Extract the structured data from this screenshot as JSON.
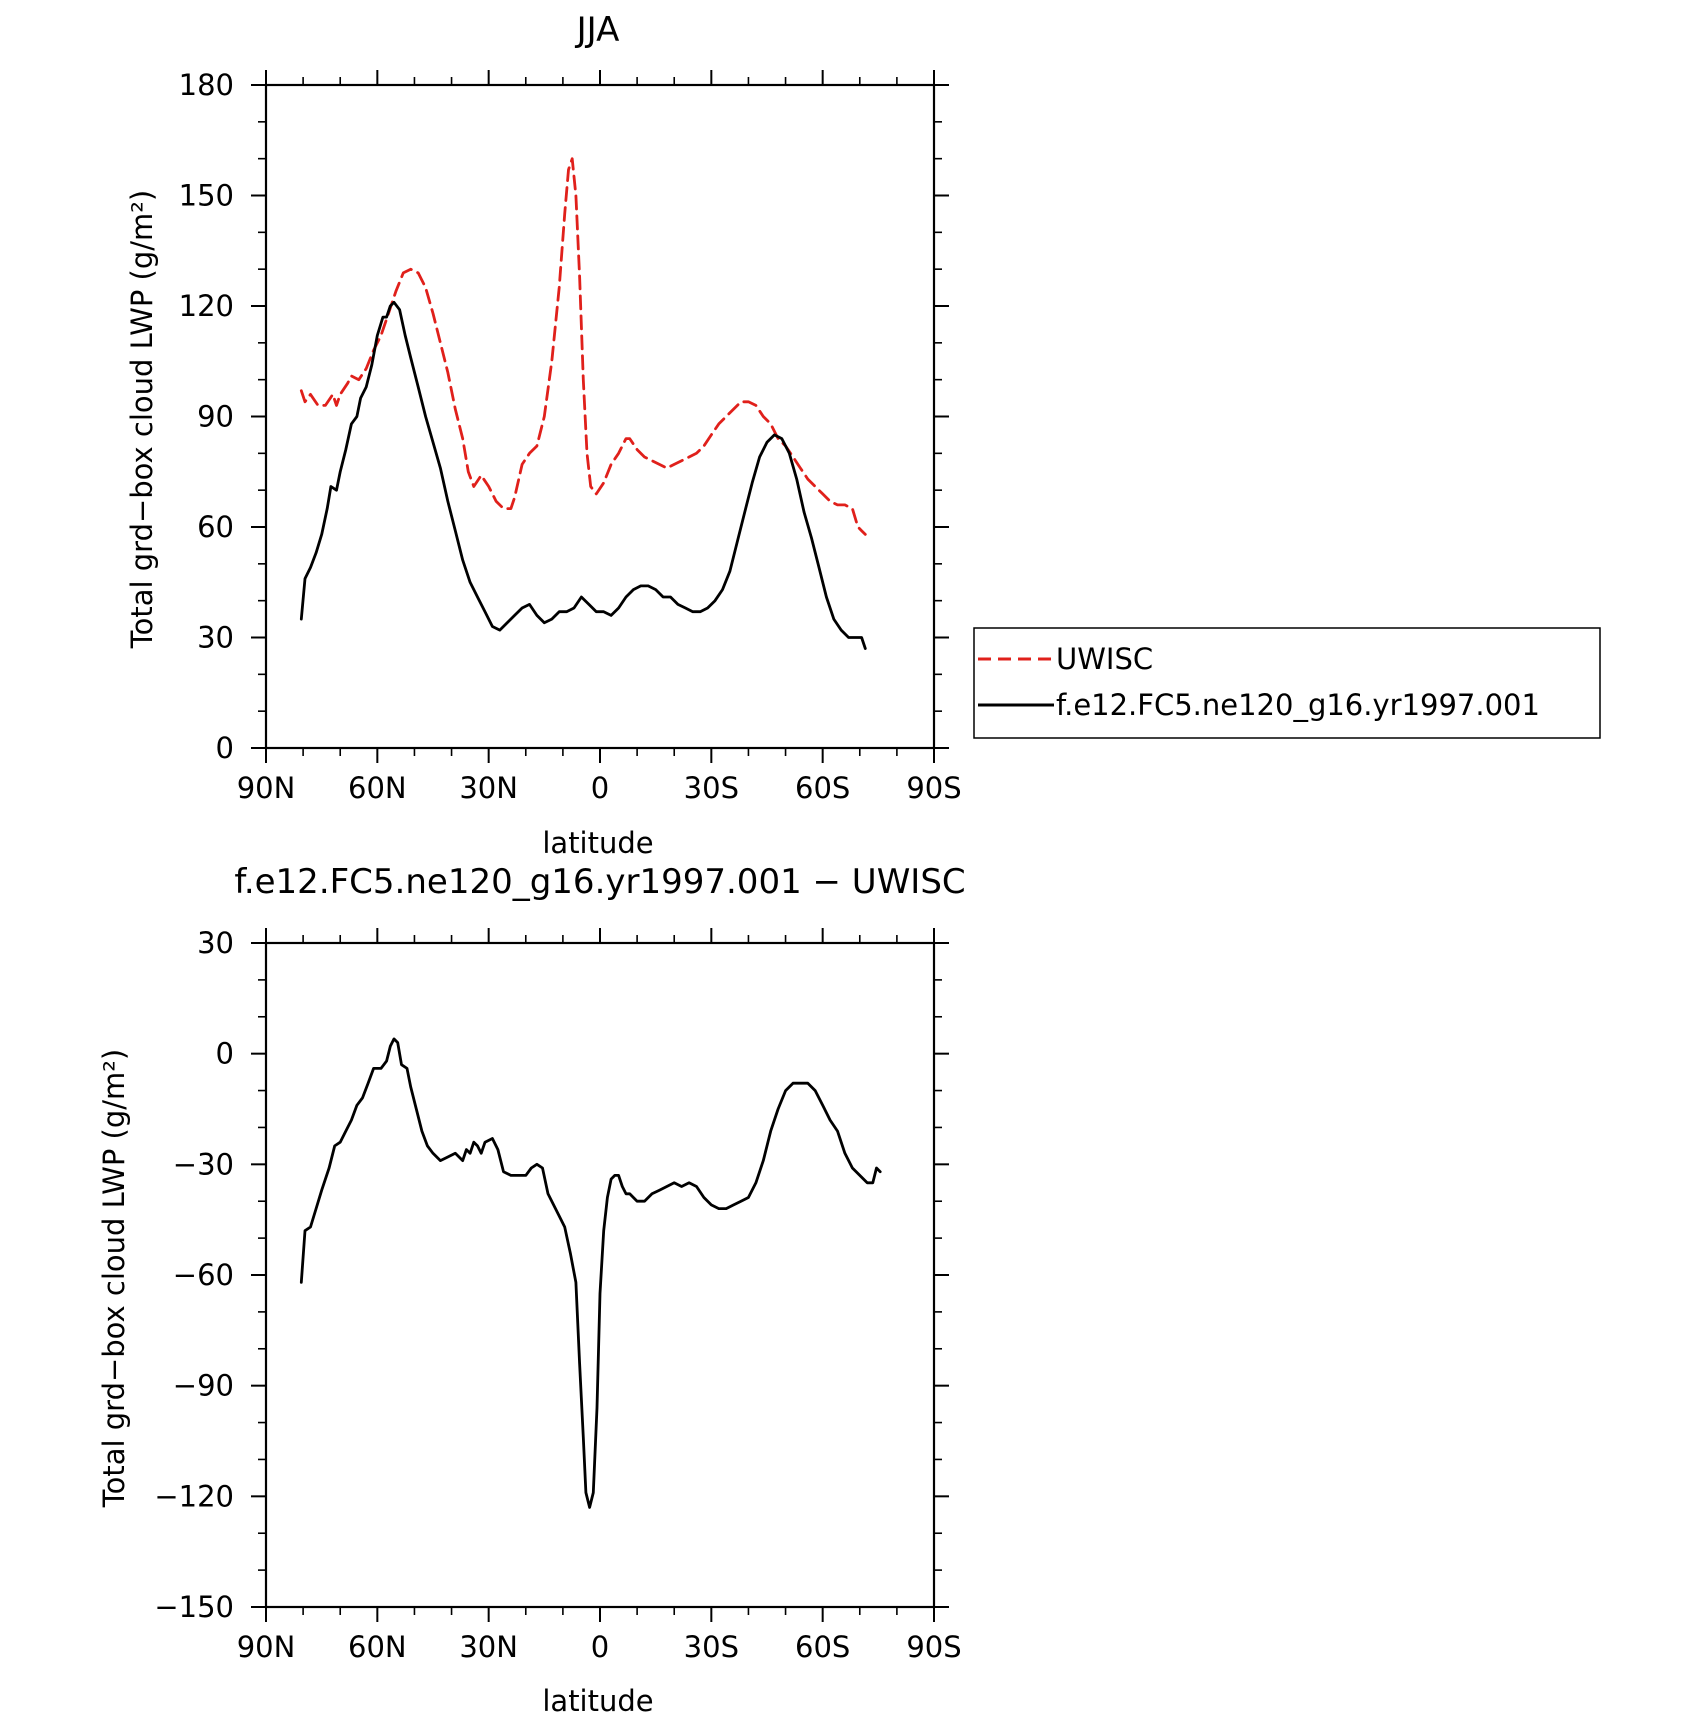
{
  "chart_data": [
    {
      "type": "line",
      "title": "JJA",
      "xlabel": "latitude",
      "ylabel": "Total grd−box cloud LWP (g/m²)",
      "xlim": [
        90,
        -90
      ],
      "ylim": [
        0,
        180
      ],
      "xticks": [
        90,
        60,
        30,
        0,
        -30,
        -60,
        -90
      ],
      "xtick_labels": [
        "90N",
        "60N",
        "30N",
        "0",
        "30S",
        "60S",
        "90S"
      ],
      "yticks": [
        0,
        30,
        60,
        90,
        120,
        150,
        180
      ],
      "ytick_labels": [
        "0",
        "30",
        "60",
        "90",
        "120",
        "150",
        "180"
      ],
      "legend": "right",
      "series": [
        {
          "name": "UWISC",
          "color": "#e0201b",
          "dash": "dashed",
          "points": [
            [
              80.5,
              97
            ],
            [
              79.5,
              94
            ],
            [
              78,
              96
            ],
            [
              76,
              93
            ],
            [
              74,
              93
            ],
            [
              72,
              96
            ],
            [
              71,
              93
            ],
            [
              70,
              96
            ],
            [
              68,
              99
            ],
            [
              67,
              101
            ],
            [
              65,
              100
            ],
            [
              63,
              103
            ],
            [
              61,
              108
            ],
            [
              59,
              112
            ],
            [
              57,
              118
            ],
            [
              55,
              124
            ],
            [
              53,
              129
            ],
            [
              51,
              130
            ],
            [
              49,
              129
            ],
            [
              47,
              125
            ],
            [
              45,
              118
            ],
            [
              43,
              110
            ],
            [
              41,
              102
            ],
            [
              39,
              92
            ],
            [
              37,
              84
            ],
            [
              35.5,
              75
            ],
            [
              34,
              71
            ],
            [
              32,
              74
            ],
            [
              30,
              71
            ],
            [
              28,
              67
            ],
            [
              26,
              65
            ],
            [
              24,
              65
            ],
            [
              23,
              68
            ],
            [
              21,
              77
            ],
            [
              19,
              80
            ],
            [
              17,
              82
            ],
            [
              15,
              90
            ],
            [
              13,
              105
            ],
            [
              11,
              125
            ],
            [
              9.5,
              145
            ],
            [
              8.5,
              157
            ],
            [
              7.5,
              160
            ],
            [
              6.5,
              150
            ],
            [
              5.5,
              128
            ],
            [
              4.5,
              100
            ],
            [
              3.5,
              80
            ],
            [
              2.5,
              71
            ],
            [
              1,
              69
            ],
            [
              -1,
              72
            ],
            [
              -3,
              77
            ],
            [
              -5,
              80
            ],
            [
              -7,
              84
            ],
            [
              -8,
              84
            ],
            [
              -10,
              81
            ],
            [
              -12,
              79
            ],
            [
              -14,
              78
            ],
            [
              -16,
              77
            ],
            [
              -18,
              76
            ],
            [
              -20,
              77
            ],
            [
              -22,
              78
            ],
            [
              -24,
              79
            ],
            [
              -26,
              80
            ],
            [
              -28,
              82
            ],
            [
              -30,
              85
            ],
            [
              -32,
              88
            ],
            [
              -34,
              90
            ],
            [
              -36,
              92
            ],
            [
              -38,
              94
            ],
            [
              -40,
              94
            ],
            [
              -42,
              93
            ],
            [
              -44,
              90
            ],
            [
              -46,
              88
            ],
            [
              -48,
              84
            ],
            [
              -50,
              82
            ],
            [
              -52,
              79
            ],
            [
              -54,
              76
            ],
            [
              -56,
              73
            ],
            [
              -58,
              71
            ],
            [
              -60,
              69
            ],
            [
              -62,
              67
            ],
            [
              -64,
              66
            ],
            [
              -66,
              66
            ],
            [
              -68,
              65
            ],
            [
              -69.5,
              60
            ],
            [
              -70.5,
              59
            ],
            [
              -71.5,
              58
            ]
          ]
        },
        {
          "name": "f.e12.FC5.ne120_g16.yr1997.001",
          "color": "#000000",
          "dash": "solid",
          "points": [
            [
              80.5,
              35
            ],
            [
              79.5,
              46
            ],
            [
              78,
              49
            ],
            [
              76.5,
              53
            ],
            [
              75,
              58
            ],
            [
              73.5,
              65
            ],
            [
              72.5,
              71
            ],
            [
              71,
              70
            ],
            [
              70,
              75
            ],
            [
              68.5,
              81
            ],
            [
              67,
              88
            ],
            [
              65.5,
              90
            ],
            [
              64.5,
              95
            ],
            [
              63,
              98
            ],
            [
              61.5,
              104
            ],
            [
              60,
              112
            ],
            [
              58.5,
              117
            ],
            [
              57.5,
              117
            ],
            [
              56.5,
              120
            ],
            [
              55.5,
              121
            ],
            [
              54,
              119
            ],
            [
              52.5,
              112
            ],
            [
              51,
              106
            ],
            [
              49,
              98
            ],
            [
              47,
              90
            ],
            [
              45,
              83
            ],
            [
              43,
              76
            ],
            [
              41,
              67
            ],
            [
              39,
              59
            ],
            [
              37,
              51
            ],
            [
              35,
              45
            ],
            [
              33,
              41
            ],
            [
              31,
              37
            ],
            [
              29,
              33
            ],
            [
              27,
              32
            ],
            [
              25,
              34
            ],
            [
              23,
              36
            ],
            [
              21,
              38
            ],
            [
              19,
              39
            ],
            [
              17,
              36
            ],
            [
              15,
              34
            ],
            [
              13,
              35
            ],
            [
              11,
              37
            ],
            [
              9,
              37
            ],
            [
              7,
              38
            ],
            [
              5,
              41
            ],
            [
              3,
              39
            ],
            [
              1,
              37
            ],
            [
              -1,
              37
            ],
            [
              -3,
              36
            ],
            [
              -5,
              38
            ],
            [
              -7,
              41
            ],
            [
              -9,
              43
            ],
            [
              -11,
              44
            ],
            [
              -13,
              44
            ],
            [
              -15,
              43
            ],
            [
              -17,
              41
            ],
            [
              -19,
              41
            ],
            [
              -21,
              39
            ],
            [
              -23,
              38
            ],
            [
              -25,
              37
            ],
            [
              -27,
              37
            ],
            [
              -29,
              38
            ],
            [
              -31,
              40
            ],
            [
              -33,
              43
            ],
            [
              -35,
              48
            ],
            [
              -37,
              56
            ],
            [
              -39,
              64
            ],
            [
              -41,
              72
            ],
            [
              -43,
              79
            ],
            [
              -45,
              83
            ],
            [
              -47,
              85
            ],
            [
              -49,
              84
            ],
            [
              -51,
              80
            ],
            [
              -53,
              73
            ],
            [
              -55,
              64
            ],
            [
              -57,
              57
            ],
            [
              -59,
              49
            ],
            [
              -61,
              41
            ],
            [
              -63,
              35
            ],
            [
              -65,
              32
            ],
            [
              -67,
              30
            ],
            [
              -69,
              30
            ],
            [
              -70.5,
              30
            ],
            [
              -71.5,
              27
            ]
          ]
        }
      ]
    },
    {
      "type": "line",
      "title": "f.e12.FC5.ne120_g16.yr1997.001 − UWISC",
      "xlabel": "latitude",
      "ylabel": "Total grd−box cloud LWP (g/m²)",
      "xlim": [
        90,
        -90
      ],
      "ylim": [
        -150,
        30
      ],
      "xticks": [
        90,
        60,
        30,
        0,
        -30,
        -60,
        -90
      ],
      "xtick_labels": [
        "90N",
        "60N",
        "30N",
        "0",
        "30S",
        "60S",
        "90S"
      ],
      "yticks": [
        -150,
        -120,
        -90,
        -60,
        -30,
        0,
        30
      ],
      "ytick_labels": [
        "−150",
        "−120",
        "−90",
        "−60",
        "−30",
        "0",
        "30"
      ],
      "series": [
        {
          "color": "#000000",
          "dash": "solid",
          "points": [
            [
              80.5,
              -62
            ],
            [
              79.5,
              -48
            ],
            [
              78,
              -47
            ],
            [
              76.5,
              -42
            ],
            [
              75,
              -37
            ],
            [
              73,
              -31
            ],
            [
              71.5,
              -25
            ],
            [
              70,
              -24
            ],
            [
              68.5,
              -21
            ],
            [
              67,
              -18
            ],
            [
              65.5,
              -14
            ],
            [
              64,
              -12
            ],
            [
              62.5,
              -8
            ],
            [
              61,
              -4
            ],
            [
              59,
              -4
            ],
            [
              57.5,
              -2
            ],
            [
              56.5,
              2
            ],
            [
              55.5,
              4
            ],
            [
              54.5,
              3
            ],
            [
              53.5,
              -3
            ],
            [
              52,
              -4
            ],
            [
              51,
              -9
            ],
            [
              49.5,
              -15
            ],
            [
              48,
              -21
            ],
            [
              46.5,
              -25
            ],
            [
              45,
              -27
            ],
            [
              43,
              -29
            ],
            [
              41,
              -28
            ],
            [
              39,
              -27
            ],
            [
              37,
              -29
            ],
            [
              36,
              -26
            ],
            [
              35,
              -27
            ],
            [
              34,
              -24
            ],
            [
              33,
              -25
            ],
            [
              32,
              -27
            ],
            [
              31,
              -24
            ],
            [
              29,
              -23
            ],
            [
              27.5,
              -26
            ],
            [
              26,
              -32
            ],
            [
              24,
              -33
            ],
            [
              22,
              -33
            ],
            [
              20,
              -33
            ],
            [
              18.5,
              -31
            ],
            [
              17,
              -30
            ],
            [
              15.5,
              -31
            ],
            [
              14,
              -38
            ],
            [
              12.5,
              -41
            ],
            [
              11,
              -44
            ],
            [
              9.5,
              -47
            ],
            [
              8,
              -54
            ],
            [
              6.5,
              -62
            ],
            [
              5.5,
              -84
            ],
            [
              4.5,
              -104
            ],
            [
              3.8,
              -119
            ],
            [
              2.8,
              -123
            ],
            [
              1.8,
              -119
            ],
            [
              0.8,
              -96
            ],
            [
              0,
              -65
            ],
            [
              -1,
              -48
            ],
            [
              -2,
              -39
            ],
            [
              -3,
              -34
            ],
            [
              -4,
              -33
            ],
            [
              -5,
              -33
            ],
            [
              -6,
              -36
            ],
            [
              -7,
              -38
            ],
            [
              -8,
              -38
            ],
            [
              -9,
              -39
            ],
            [
              -10,
              -40
            ],
            [
              -12,
              -40
            ],
            [
              -14,
              -38
            ],
            [
              -16,
              -37
            ],
            [
              -18,
              -36
            ],
            [
              -20,
              -35
            ],
            [
              -22,
              -36
            ],
            [
              -24,
              -35
            ],
            [
              -26,
              -36
            ],
            [
              -28,
              -39
            ],
            [
              -30,
              -41
            ],
            [
              -32,
              -42
            ],
            [
              -34,
              -42
            ],
            [
              -36,
              -41
            ],
            [
              -38,
              -40
            ],
            [
              -40,
              -39
            ],
            [
              -42,
              -35
            ],
            [
              -44,
              -29
            ],
            [
              -46,
              -21
            ],
            [
              -48,
              -15
            ],
            [
              -50,
              -10
            ],
            [
              -52,
              -8
            ],
            [
              -54,
              -8
            ],
            [
              -56,
              -8
            ],
            [
              -58,
              -10
            ],
            [
              -60,
              -14
            ],
            [
              -62,
              -18
            ],
            [
              -64,
              -21
            ],
            [
              -66,
              -27
            ],
            [
              -68,
              -31
            ],
            [
              -70,
              -33
            ],
            [
              -72,
              -35
            ],
            [
              -73.5,
              -35
            ],
            [
              -74.5,
              -31
            ],
            [
              -75.5,
              -32
            ]
          ]
        }
      ]
    }
  ]
}
